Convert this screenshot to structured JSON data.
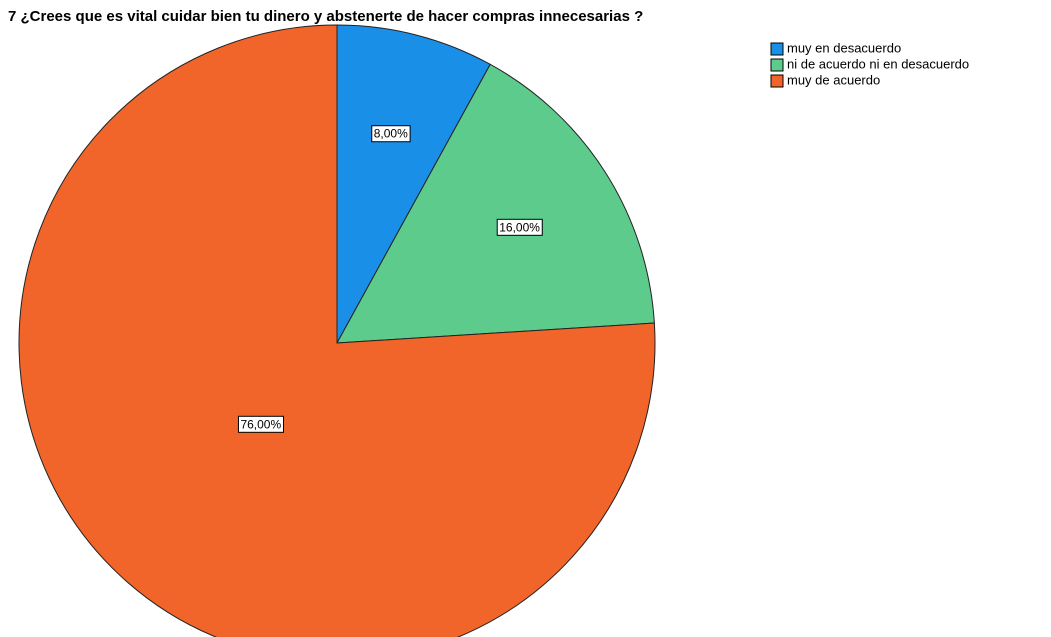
{
  "chart_data": {
    "type": "pie",
    "title": "7 ¿Crees que es vital cuidar bien tu dinero y abstenerte de hacer compras innecesarias ?",
    "categories": [
      "muy en desacuerdo",
      "ni de acuerdo ni en desacuerdo",
      "muy de acuerdo"
    ],
    "values": [
      8,
      16,
      76
    ],
    "value_labels": [
      "8,00%",
      "16,00%",
      "76,00%"
    ],
    "colors": [
      "#1a8fe8",
      "#5ccb8c",
      "#f2652a"
    ],
    "legend": "top-right"
  }
}
